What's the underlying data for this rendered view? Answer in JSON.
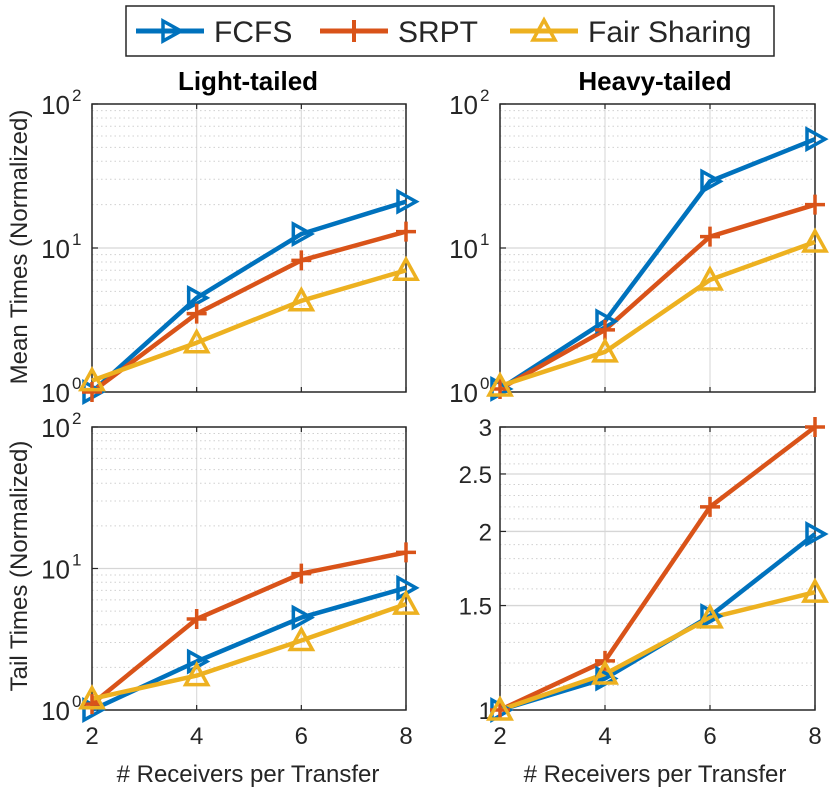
{
  "legend": {
    "placement": "top-center",
    "items": [
      {
        "label": "FCFS",
        "color": "#0072BD",
        "marker": "triangle-right"
      },
      {
        "label": "SRPT",
        "color": "#D95319",
        "marker": "plus"
      },
      {
        "label": "Fair Sharing",
        "color": "#EDB120",
        "marker": "triangle-up"
      }
    ]
  },
  "labels": {
    "col_left": "Light-tailed",
    "col_right": "Heavy-tailed",
    "ylabel_top": "Mean Times (Normalized)",
    "ylabel_bottom": "Tail Times (Normalized)",
    "xlabel": "# Receivers per Transfer"
  },
  "chart_data": [
    {
      "type": "line",
      "panel": "top-left",
      "title": "Light-tailed",
      "xlabel": "",
      "ylabel": "Mean Times (Normalized)",
      "yscale": "log",
      "xlim": [
        2,
        8
      ],
      "ylim": [
        1,
        100
      ],
      "grid": true,
      "x": [
        2,
        4,
        6,
        8
      ],
      "series": [
        {
          "name": "FCFS",
          "values": [
            1.0,
            4.5,
            12.5,
            21
          ]
        },
        {
          "name": "SRPT",
          "values": [
            1.0,
            3.5,
            8.2,
            13
          ]
        },
        {
          "name": "Fair Sharing",
          "values": [
            1.2,
            2.2,
            4.3,
            7
          ]
        }
      ]
    },
    {
      "type": "line",
      "panel": "top-right",
      "title": "Heavy-tailed",
      "xlabel": "",
      "ylabel": "",
      "yscale": "log",
      "xlim": [
        2,
        8
      ],
      "ylim": [
        1,
        100
      ],
      "grid": true,
      "x": [
        2,
        4,
        6,
        8
      ],
      "series": [
        {
          "name": "FCFS",
          "values": [
            1.05,
            3.1,
            29,
            57
          ]
        },
        {
          "name": "SRPT",
          "values": [
            1.05,
            2.7,
            12,
            20
          ]
        },
        {
          "name": "Fair Sharing",
          "values": [
            1.1,
            1.9,
            6,
            11
          ]
        }
      ]
    },
    {
      "type": "line",
      "panel": "bottom-left",
      "title": "",
      "xlabel": "# Receivers per Transfer",
      "ylabel": "Tail Times (Normalized)",
      "yscale": "log",
      "xlim": [
        2,
        8
      ],
      "ylim": [
        1,
        100
      ],
      "grid": true,
      "x": [
        2,
        4,
        6,
        8
      ],
      "series": [
        {
          "name": "FCFS",
          "values": [
            1.0,
            2.2,
            4.5,
            7.3
          ]
        },
        {
          "name": "SRPT",
          "values": [
            1.1,
            4.4,
            9.2,
            13
          ]
        },
        {
          "name": "Fair Sharing",
          "values": [
            1.2,
            1.75,
            3.1,
            5.6
          ]
        }
      ]
    },
    {
      "type": "line",
      "panel": "bottom-right",
      "title": "",
      "xlabel": "# Receivers per Transfer",
      "ylabel": "",
      "yscale": "log",
      "xlim": [
        2,
        8
      ],
      "ylim": [
        1,
        3
      ],
      "grid": true,
      "x": [
        2,
        4,
        6,
        8
      ],
      "series": [
        {
          "name": "FCFS",
          "values": [
            1.0,
            1.13,
            1.44,
            1.98
          ]
        },
        {
          "name": "SRPT",
          "values": [
            1.0,
            1.21,
            2.2,
            3.0
          ]
        },
        {
          "name": "Fair Sharing",
          "values": [
            1.0,
            1.15,
            1.43,
            1.58
          ]
        }
      ]
    }
  ],
  "ticks": {
    "x": [
      "2",
      "4",
      "6",
      "8"
    ],
    "decade_base": "10",
    "decade_exponents": [
      "0",
      "1",
      "2"
    ],
    "linear_right_bottom": [
      "1",
      "1.5",
      "2",
      "2.5",
      "3"
    ]
  }
}
